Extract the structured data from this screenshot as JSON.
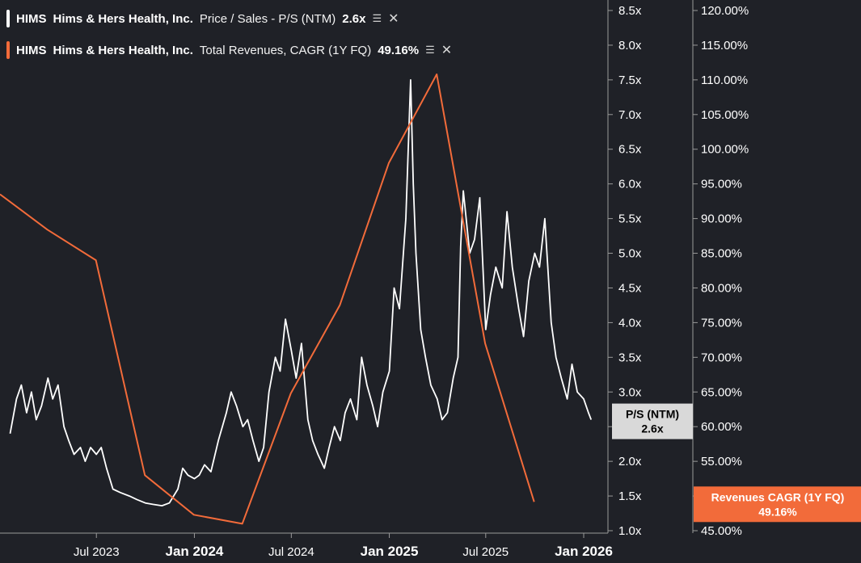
{
  "legend": [
    {
      "ticker": "HIMS",
      "company": "Hims & Hers Health, Inc.",
      "metric": "Price / Sales - P/S (NTM)",
      "value": "2.6x",
      "color": "#ffffff",
      "icon": "stack-icon",
      "close": "✕"
    },
    {
      "ticker": "HIMS",
      "company": "Hims & Hers Health, Inc.",
      "metric": "Total Revenues, CAGR (1Y FQ)",
      "value": "49.16%",
      "color": "#f26b3a",
      "icon": "stack-icon",
      "close": "✕"
    }
  ],
  "badges": {
    "ps": {
      "line1": "P/S (NTM)",
      "line2": "2.6x",
      "bg": "#d9d9d9",
      "fg": "#000000"
    },
    "cagr": {
      "line1": "Revenues CAGR (1Y FQ)",
      "line2": "49.16%",
      "bg": "#f26b3a",
      "fg": "#ffffff"
    }
  },
  "chart_data": {
    "type": "line",
    "x_ticks": [
      {
        "label": "Jul 2023",
        "date": "2023-07-01",
        "bold": false
      },
      {
        "label": "Jan 2024",
        "date": "2024-01-01",
        "bold": true
      },
      {
        "label": "Jul 2024",
        "date": "2024-07-01",
        "bold": false
      },
      {
        "label": "Jan 2025",
        "date": "2025-01-01",
        "bold": true
      },
      {
        "label": "Jul 2025",
        "date": "2025-07-01",
        "bold": false
      },
      {
        "label": "Jan 2026",
        "date": "2026-01-01",
        "bold": true
      }
    ],
    "y_left": {
      "ticks": [
        "8.5x",
        "8.0x",
        "7.5x",
        "7.0x",
        "6.5x",
        "6.0x",
        "5.5x",
        "5.0x",
        "4.5x",
        "4.0x",
        "3.5x",
        "3.0x",
        "2.5x",
        "2.0x",
        "1.5x",
        "1.0x"
      ],
      "min": 1.0,
      "max": 8.5
    },
    "y_right": {
      "ticks": [
        "120.00%",
        "115.00%",
        "110.00%",
        "105.00%",
        "100.00%",
        "95.00%",
        "90.00%",
        "85.00%",
        "80.00%",
        "75.00%",
        "70.00%",
        "65.00%",
        "60.00%",
        "55.00%",
        "50.00%",
        "45.00%"
      ],
      "min": 45,
      "max": 120
    },
    "series": [
      {
        "name": "Price / Sales - P/S (NTM)",
        "color": "#ffffff",
        "axis": "left",
        "points": [
          [
            "2023-01-20",
            2.4
          ],
          [
            "2023-02-01",
            2.9
          ],
          [
            "2023-02-10",
            3.1
          ],
          [
            "2023-02-20",
            2.7
          ],
          [
            "2023-03-01",
            3.0
          ],
          [
            "2023-03-10",
            2.6
          ],
          [
            "2023-03-20",
            2.8
          ],
          [
            "2023-04-01",
            3.2
          ],
          [
            "2023-04-10",
            2.9
          ],
          [
            "2023-04-20",
            3.1
          ],
          [
            "2023-05-01",
            2.5
          ],
          [
            "2023-05-10",
            2.3
          ],
          [
            "2023-05-20",
            2.1
          ],
          [
            "2023-06-01",
            2.2
          ],
          [
            "2023-06-10",
            2.0
          ],
          [
            "2023-06-20",
            2.2
          ],
          [
            "2023-07-01",
            2.1
          ],
          [
            "2023-07-10",
            2.2
          ],
          [
            "2023-07-20",
            1.9
          ],
          [
            "2023-08-01",
            1.6
          ],
          [
            "2023-08-15",
            1.55
          ],
          [
            "2023-09-01",
            1.5
          ],
          [
            "2023-09-15",
            1.45
          ],
          [
            "2023-10-01",
            1.4
          ],
          [
            "2023-10-15",
            1.38
          ],
          [
            "2023-11-01",
            1.36
          ],
          [
            "2023-11-15",
            1.4
          ],
          [
            "2023-12-01",
            1.6
          ],
          [
            "2023-12-10",
            1.9
          ],
          [
            "2023-12-20",
            1.8
          ],
          [
            "2024-01-01",
            1.75
          ],
          [
            "2024-01-10",
            1.8
          ],
          [
            "2024-01-20",
            1.95
          ],
          [
            "2024-02-01",
            1.85
          ],
          [
            "2024-02-15",
            2.3
          ],
          [
            "2024-03-01",
            2.7
          ],
          [
            "2024-03-10",
            3.0
          ],
          [
            "2024-03-20",
            2.8
          ],
          [
            "2024-04-01",
            2.5
          ],
          [
            "2024-04-10",
            2.6
          ],
          [
            "2024-04-20",
            2.3
          ],
          [
            "2024-05-01",
            2.0
          ],
          [
            "2024-05-10",
            2.2
          ],
          [
            "2024-05-20",
            3.0
          ],
          [
            "2024-06-01",
            3.5
          ],
          [
            "2024-06-10",
            3.3
          ],
          [
            "2024-06-20",
            4.05
          ],
          [
            "2024-07-01",
            3.6
          ],
          [
            "2024-07-10",
            3.2
          ],
          [
            "2024-07-20",
            3.7
          ],
          [
            "2024-08-01",
            2.6
          ],
          [
            "2024-08-10",
            2.3
          ],
          [
            "2024-08-20",
            2.1
          ],
          [
            "2024-09-01",
            1.9
          ],
          [
            "2024-09-10",
            2.2
          ],
          [
            "2024-09-20",
            2.5
          ],
          [
            "2024-10-01",
            2.3
          ],
          [
            "2024-10-10",
            2.7
          ],
          [
            "2024-10-20",
            2.9
          ],
          [
            "2024-11-01",
            2.6
          ],
          [
            "2024-11-10",
            3.5
          ],
          [
            "2024-11-20",
            3.1
          ],
          [
            "2024-12-01",
            2.8
          ],
          [
            "2024-12-10",
            2.5
          ],
          [
            "2024-12-20",
            3.0
          ],
          [
            "2025-01-01",
            3.3
          ],
          [
            "2025-01-10",
            4.5
          ],
          [
            "2025-01-20",
            4.2
          ],
          [
            "2025-02-01",
            5.5
          ],
          [
            "2025-02-10",
            7.5
          ],
          [
            "2025-02-15",
            6.0
          ],
          [
            "2025-02-20",
            5.0
          ],
          [
            "2025-03-01",
            3.9
          ],
          [
            "2025-03-10",
            3.5
          ],
          [
            "2025-03-20",
            3.1
          ],
          [
            "2025-04-01",
            2.9
          ],
          [
            "2025-04-10",
            2.6
          ],
          [
            "2025-04-20",
            2.7
          ],
          [
            "2025-05-01",
            3.2
          ],
          [
            "2025-05-10",
            3.5
          ],
          [
            "2025-05-15",
            5.1
          ],
          [
            "2025-05-20",
            5.9
          ],
          [
            "2025-06-01",
            5.0
          ],
          [
            "2025-06-10",
            5.2
          ],
          [
            "2025-06-20",
            5.8
          ],
          [
            "2025-07-01",
            3.9
          ],
          [
            "2025-07-10",
            4.4
          ],
          [
            "2025-07-20",
            4.8
          ],
          [
            "2025-08-01",
            4.5
          ],
          [
            "2025-08-10",
            5.6
          ],
          [
            "2025-08-20",
            4.8
          ],
          [
            "2025-09-01",
            4.2
          ],
          [
            "2025-09-10",
            3.8
          ],
          [
            "2025-09-20",
            4.6
          ],
          [
            "2025-10-01",
            5.0
          ],
          [
            "2025-10-10",
            4.8
          ],
          [
            "2025-10-20",
            5.5
          ],
          [
            "2025-11-01",
            4.0
          ],
          [
            "2025-11-10",
            3.5
          ],
          [
            "2025-11-20",
            3.2
          ],
          [
            "2025-12-01",
            2.9
          ],
          [
            "2025-12-10",
            3.4
          ],
          [
            "2025-12-20",
            3.0
          ],
          [
            "2026-01-01",
            2.9
          ],
          [
            "2026-01-10",
            2.7
          ],
          [
            "2026-01-15",
            2.6
          ]
        ]
      },
      {
        "name": "Total Revenues, CAGR (1Y FQ)",
        "color": "#f26b3a",
        "axis": "right",
        "points": [
          [
            "2023-01-01",
            93.5
          ],
          [
            "2023-03-31",
            88.4
          ],
          [
            "2023-06-30",
            84.0
          ],
          [
            "2023-09-30",
            53.0
          ],
          [
            "2023-12-31",
            47.3
          ],
          [
            "2024-03-31",
            46.0
          ],
          [
            "2024-06-30",
            64.8
          ],
          [
            "2024-09-30",
            77.5
          ],
          [
            "2024-12-31",
            98.0
          ],
          [
            "2025-03-31",
            110.8
          ],
          [
            "2025-06-30",
            72.0
          ],
          [
            "2025-09-30",
            49.16
          ]
        ]
      }
    ]
  }
}
